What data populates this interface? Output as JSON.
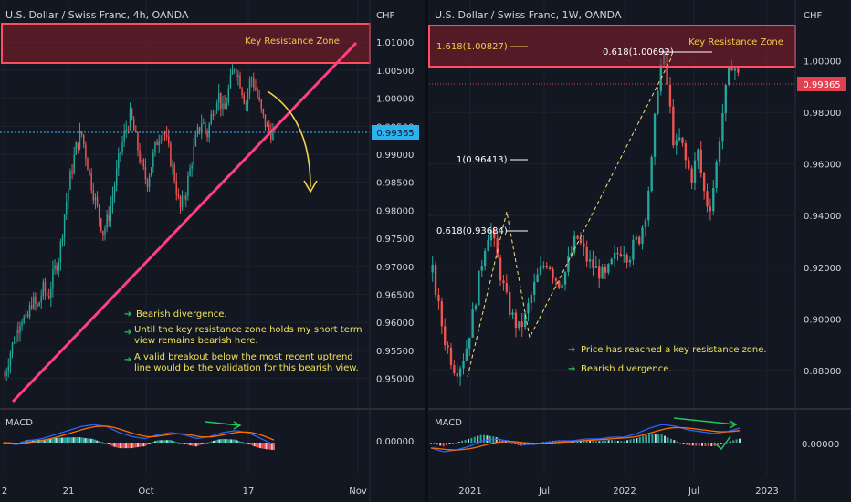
{
  "charts": [
    {
      "title": "U.S. Dollar / Swiss Franc, 4h, OANDA",
      "currency": "CHF",
      "price_ticks": [
        "1.01000",
        "1.00500",
        "1.00000",
        "0.99500",
        "0.99000",
        "0.98500",
        "0.98000",
        "0.97500",
        "0.97000",
        "0.96500",
        "0.96000",
        "0.95500",
        "0.95000"
      ],
      "last_price": "0.99365",
      "x_ticks": [
        "2",
        "21",
        "Oct",
        "17",
        "Nov"
      ],
      "zone_label": "Key Resistance Zone",
      "notes": [
        "Bearish divergence.",
        "Until the key resistance zone holds my short term view remains bearish here.",
        "A valid breakout below the most recent uptrend line would be the validation for this bearish view."
      ],
      "indicator": "MACD",
      "macd_tick": "0.00000"
    },
    {
      "title": "U.S. Dollar / Swiss Franc, 1W, OANDA",
      "currency": "CHF",
      "price_ticks": [
        "1.00000",
        "0.98000",
        "0.96000",
        "0.94000",
        "0.92000",
        "0.90000",
        "0.88000"
      ],
      "last_price": "0.99365",
      "x_ticks": [
        "2021",
        "Jul",
        "2022",
        "Jul",
        "2023"
      ],
      "zone_label": "Key Resistance Zone",
      "fib_labels": [
        "1.618(1.00827)",
        "0.618(1.00692)",
        "1(0.96413)",
        "0.618(0.93684)"
      ],
      "notes": [
        "Price has reached a key resistance zone.",
        "Bearish divergence."
      ],
      "indicator": "MACD",
      "macd_tick": "0.00000"
    }
  ],
  "chart_data": [
    {
      "type": "candlestick",
      "title": "U.S. Dollar / Swiss Franc, 4h, OANDA",
      "ylim": [
        0.9475,
        1.0115
      ],
      "x_ticks": [
        "2",
        "21",
        "Oct",
        "17",
        "Nov"
      ],
      "close_path": [
        0.9505,
        0.9545,
        0.958,
        0.961,
        0.96,
        0.964,
        0.9625,
        0.966,
        0.9645,
        0.969,
        0.972,
        0.98,
        0.986,
        0.991,
        0.994,
        0.989,
        0.984,
        0.98,
        0.976,
        0.979,
        0.984,
        0.99,
        0.994,
        0.997,
        0.9925,
        0.988,
        0.985,
        0.989,
        0.993,
        0.9945,
        0.9905,
        0.986,
        0.98,
        0.983,
        0.988,
        0.993,
        0.996,
        0.9935,
        0.998,
        1.001,
        0.997,
        1.002,
        1.006,
        1.003,
        0.999,
        1.004,
        1.001,
        0.997,
        0.9945,
        0.9937
      ],
      "resistance_zone": [
        1.0055,
        1.012
      ],
      "uptrend_line": [
        [
          0.9475,
          1.0085
        ]
      ],
      "last_price": 0.99365,
      "macd": {
        "line": [
          0.0,
          -0.1,
          0.1,
          0.2,
          0.4,
          0.6,
          0.8,
          0.9,
          0.8,
          0.5,
          0.3,
          0.2,
          0.4,
          0.5,
          0.4,
          0.2,
          0.3,
          0.5,
          0.6,
          0.5,
          0.2,
          -0.1
        ]
      }
    },
    {
      "type": "candlestick",
      "title": "U.S. Dollar / Swiss Franc, 1W, OANDA",
      "ylim": [
        0.875,
        1.014
      ],
      "x_ticks": [
        "2021",
        "Jul",
        "2022",
        "Jul",
        "2023"
      ],
      "close_path": [
        0.918,
        0.905,
        0.893,
        0.886,
        0.88,
        0.883,
        0.89,
        0.902,
        0.915,
        0.928,
        0.936,
        0.925,
        0.915,
        0.906,
        0.9,
        0.896,
        0.9,
        0.908,
        0.915,
        0.92,
        0.923,
        0.917,
        0.914,
        0.918,
        0.925,
        0.932,
        0.927,
        0.922,
        0.92,
        0.918,
        0.916,
        0.921,
        0.925,
        0.928,
        0.924,
        0.929,
        0.932,
        0.942,
        0.96,
        0.99,
        1.003,
        0.985,
        0.965,
        0.97,
        0.96,
        0.955,
        0.965,
        0.95,
        0.942,
        0.955,
        0.975,
        0.99,
        1.0,
        0.9937
      ],
      "resistance_zone": [
        1.0005,
        1.014
      ],
      "fibonacci": [
        {
          "ratio": "1.618",
          "price": 1.00827
        },
        {
          "ratio": "0.618",
          "price": 1.00692
        },
        {
          "ratio": "1",
          "price": 0.96413
        },
        {
          "ratio": "0.618",
          "price": 0.93684
        }
      ],
      "last_price": 0.99365,
      "macd": {
        "line": [
          -0.3,
          -0.5,
          -0.4,
          -0.2,
          0.1,
          0.2,
          0.1,
          -0.1,
          -0.1,
          0.0,
          0.1,
          0.1,
          0.2,
          0.2,
          0.3,
          0.3,
          0.5,
          0.8,
          1.0,
          0.9,
          0.7,
          0.6,
          0.5,
          0.6,
          0.8
        ]
      }
    }
  ]
}
